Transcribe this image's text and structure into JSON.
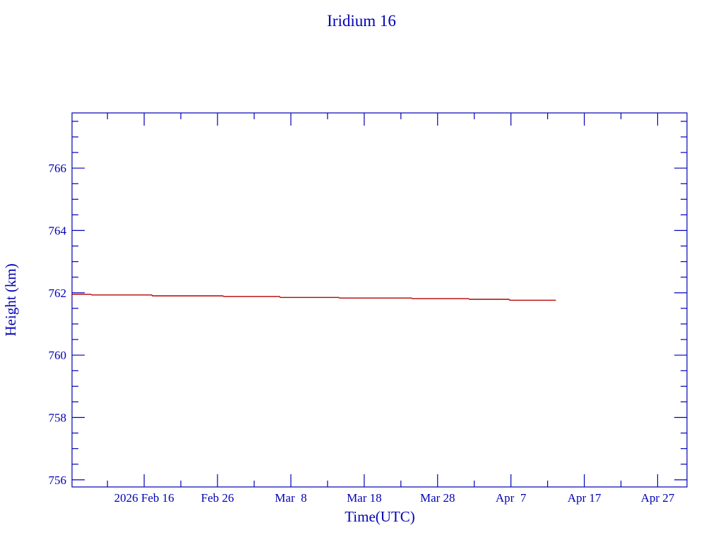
{
  "chart_data": {
    "type": "line",
    "title": "Iridium 16",
    "xlabel": "Time(UTC)",
    "ylabel": "Height (km)",
    "xlim": [
      "2026-02-06T04:00",
      "2026-05-01T00:00"
    ],
    "ylim": [
      755.77,
      767.77
    ],
    "x_tick_dates": [
      "2026-02-16",
      "2026-02-26",
      "2026-03-08",
      "2026-03-18",
      "2026-03-28",
      "2026-04-07",
      "2026-04-17",
      "2026-04-27"
    ],
    "x_tick_labels": [
      "2026 Feb 16",
      "Feb 26",
      "Mar  8",
      "Mar 18",
      "Mar 28",
      "Apr  7",
      "Apr 17",
      "Apr 27"
    ],
    "y_ticks": [
      756,
      758,
      760,
      762,
      764,
      766
    ],
    "y_tick_labels": [
      "756",
      "758",
      "760",
      "762",
      "764",
      "766"
    ],
    "grid": false,
    "series": [
      {
        "color": "#b40000",
        "step": true,
        "x": [
          "2026-02-06T04:00",
          "2026-02-08T19:00",
          "2026-02-17T02:00",
          "2026-02-26T19:00",
          "2026-03-06T12:00",
          "2026-03-14T14:00",
          "2026-03-24T12:00",
          "2026-04-01T07:00",
          "2026-04-06T19:00",
          "2026-04-13T03:00"
        ],
        "y": [
          761.95,
          761.93,
          761.9,
          761.88,
          761.85,
          761.83,
          761.81,
          761.79,
          761.76,
          761.76
        ]
      }
    ],
    "colors": {
      "axis": "#0000b4",
      "line": "#b40000"
    }
  }
}
